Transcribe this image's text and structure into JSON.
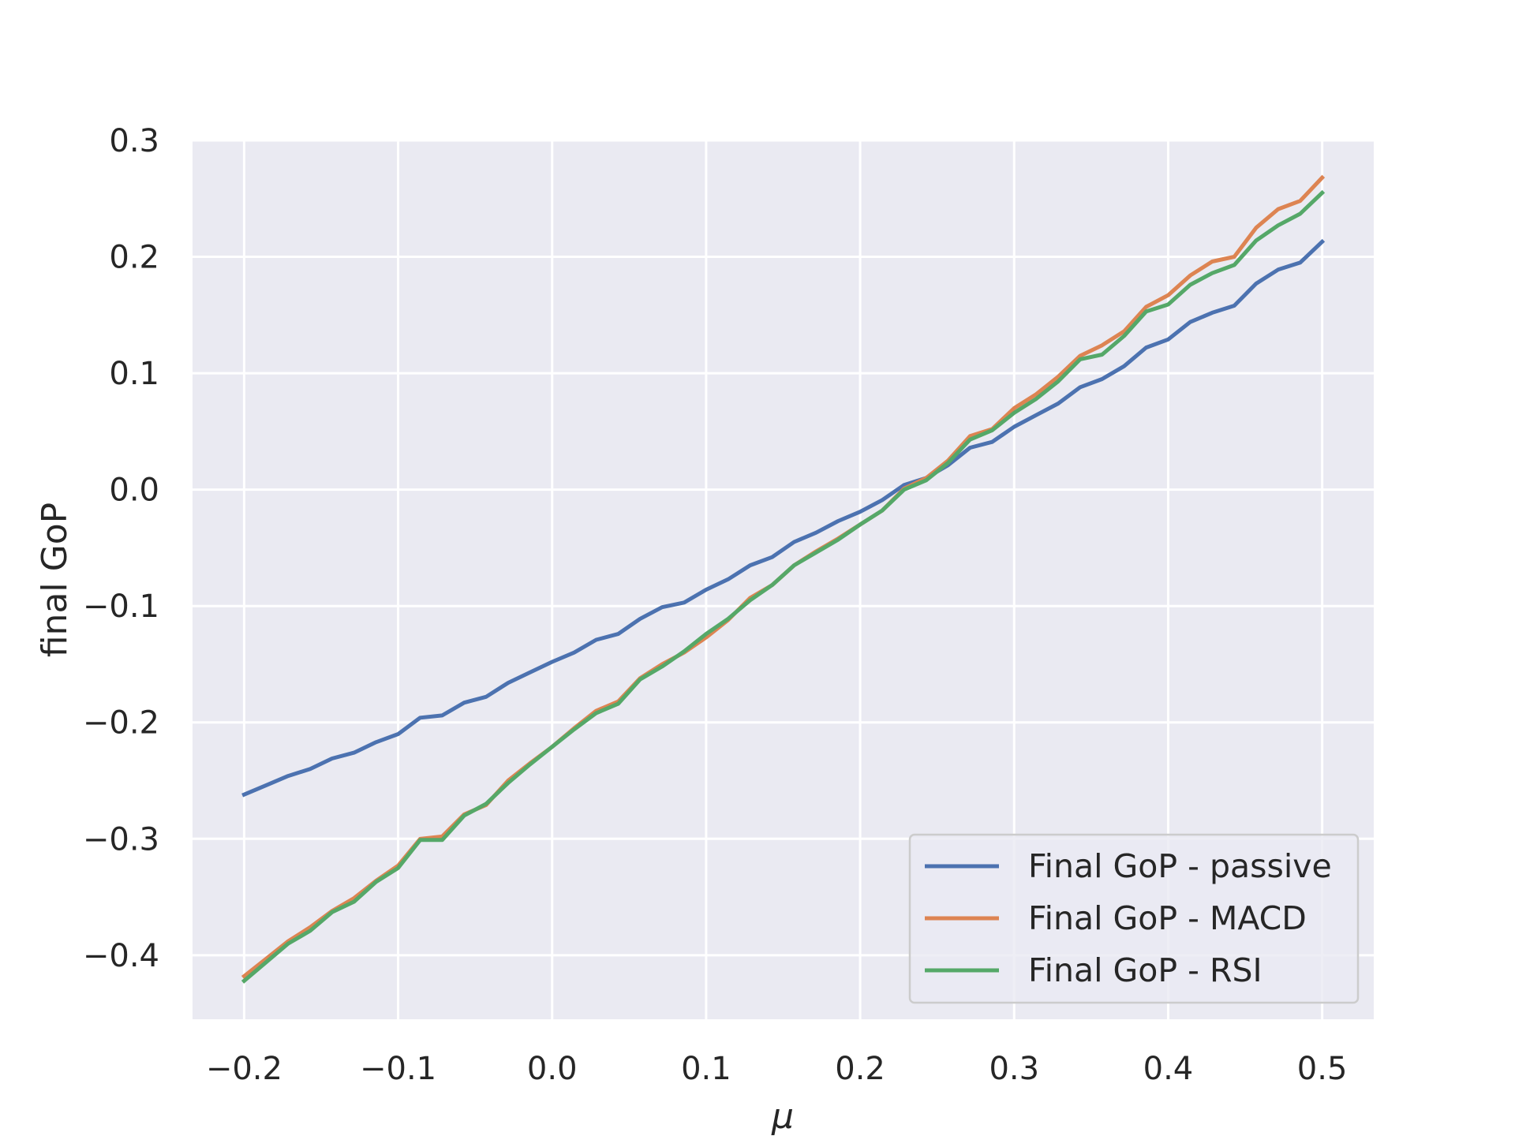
{
  "chart_data": {
    "type": "line",
    "xlabel": "μ",
    "ylabel": "final GoP",
    "xlim": [
      -0.2335,
      0.5335
    ],
    "ylim": [
      -0.455,
      0.3
    ],
    "xticks": [
      -0.2,
      -0.1,
      0.0,
      0.1,
      0.2,
      0.3,
      0.4,
      0.5
    ],
    "yticks": [
      -0.4,
      -0.3,
      -0.2,
      -0.1,
      0.0,
      0.1,
      0.2,
      0.3
    ],
    "xtick_labels": [
      "−0.2",
      "−0.1",
      "0.0",
      "0.1",
      "0.2",
      "0.3",
      "0.4",
      "0.5"
    ],
    "ytick_labels": [
      "−0.4",
      "−0.3",
      "−0.2",
      "−0.1",
      "0.0",
      "0.1",
      "0.2",
      "0.3"
    ],
    "grid": true,
    "legend_position": "lower-right",
    "background_color": "#eaeaf2",
    "x": [
      -0.2,
      -0.1857,
      -0.1714,
      -0.1571,
      -0.1429,
      -0.1286,
      -0.1143,
      -0.1,
      -0.0857,
      -0.0714,
      -0.0571,
      -0.0429,
      -0.0286,
      -0.0143,
      0.0,
      0.0143,
      0.0286,
      0.0429,
      0.0571,
      0.0714,
      0.0857,
      0.1,
      0.1143,
      0.1286,
      0.1429,
      0.1571,
      0.1714,
      0.1857,
      0.2,
      0.2143,
      0.2286,
      0.2429,
      0.2571,
      0.2714,
      0.2857,
      0.3,
      0.3143,
      0.3286,
      0.3429,
      0.3571,
      0.3714,
      0.3857,
      0.4,
      0.4143,
      0.4286,
      0.4429,
      0.4571,
      0.4714,
      0.4857,
      0.5
    ],
    "series": [
      {
        "name": "Final GoP - passive",
        "color": "#4c72b0",
        "values": [
          -0.262,
          -0.254,
          -0.246,
          -0.24,
          -0.231,
          -0.226,
          -0.217,
          -0.21,
          -0.196,
          -0.194,
          -0.183,
          -0.178,
          -0.166,
          -0.157,
          -0.148,
          -0.14,
          -0.129,
          -0.124,
          -0.111,
          -0.101,
          -0.097,
          -0.086,
          -0.077,
          -0.065,
          -0.058,
          -0.045,
          -0.037,
          -0.027,
          -0.019,
          -0.009,
          0.004,
          0.01,
          0.021,
          0.036,
          0.041,
          0.054,
          0.064,
          0.074,
          0.088,
          0.095,
          0.106,
          0.122,
          0.129,
          0.144,
          0.152,
          0.158,
          0.177,
          0.189,
          0.195,
          0.213
        ]
      },
      {
        "name": "Final GoP - MACD",
        "color": "#dd8452",
        "values": [
          -0.418,
          -0.403,
          -0.388,
          -0.376,
          -0.362,
          -0.351,
          -0.336,
          -0.323,
          -0.3,
          -0.298,
          -0.279,
          -0.271,
          -0.25,
          -0.235,
          -0.221,
          -0.205,
          -0.19,
          -0.182,
          -0.162,
          -0.15,
          -0.14,
          -0.127,
          -0.112,
          -0.093,
          -0.082,
          -0.065,
          -0.053,
          -0.042,
          -0.03,
          -0.018,
          0.001,
          0.01,
          0.025,
          0.046,
          0.052,
          0.07,
          0.082,
          0.097,
          0.115,
          0.124,
          0.136,
          0.157,
          0.167,
          0.184,
          0.196,
          0.2,
          0.225,
          0.241,
          0.248,
          0.268
        ]
      },
      {
        "name": "Final GoP - RSI",
        "color": "#55a868",
        "values": [
          -0.422,
          -0.406,
          -0.39,
          -0.379,
          -0.363,
          -0.354,
          -0.337,
          -0.325,
          -0.301,
          -0.301,
          -0.28,
          -0.27,
          -0.252,
          -0.236,
          -0.221,
          -0.206,
          -0.192,
          -0.184,
          -0.163,
          -0.152,
          -0.139,
          -0.124,
          -0.111,
          -0.095,
          -0.082,
          -0.065,
          -0.054,
          -0.043,
          -0.03,
          -0.018,
          0.0,
          0.008,
          0.023,
          0.043,
          0.051,
          0.066,
          0.078,
          0.093,
          0.112,
          0.116,
          0.132,
          0.153,
          0.159,
          0.176,
          0.186,
          0.193,
          0.214,
          0.227,
          0.237,
          0.255
        ]
      }
    ]
  }
}
